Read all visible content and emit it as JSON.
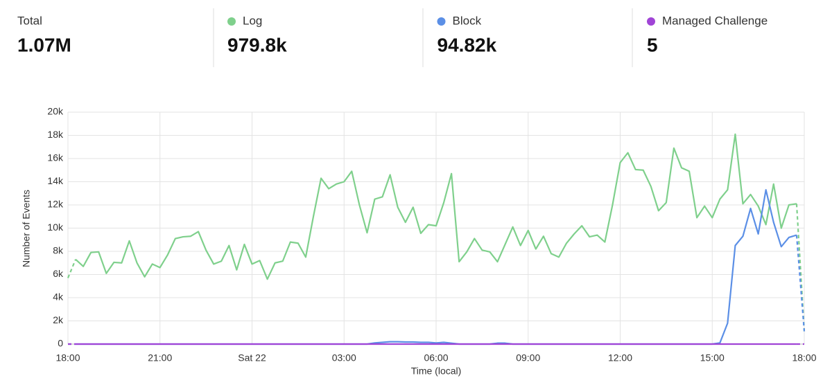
{
  "summary": {
    "label": "Total",
    "value": "1.07M"
  },
  "series_totals": [
    "979.8k",
    "94.82k",
    "5"
  ],
  "chart_data": {
    "type": "line",
    "xlabel": "Time (local)",
    "ylabel": "Number of Events",
    "x": [
      0,
      0.25,
      0.5,
      0.75,
      1,
      1.25,
      1.5,
      1.75,
      2,
      2.25,
      2.5,
      2.75,
      3,
      3.25,
      3.5,
      3.75,
      4,
      4.25,
      4.5,
      4.75,
      5,
      5.25,
      5.5,
      5.75,
      6,
      6.25,
      6.5,
      6.75,
      7,
      7.25,
      7.5,
      7.75,
      8,
      8.25,
      8.5,
      8.75,
      9,
      9.25,
      9.5,
      9.75,
      10,
      10.25,
      10.5,
      10.75,
      11,
      11.25,
      11.5,
      11.75,
      12,
      12.25,
      12.5,
      12.75,
      13,
      13.25,
      13.5,
      13.75,
      14,
      14.25,
      14.5,
      14.75,
      15,
      15.25,
      15.5,
      15.75,
      16,
      16.25,
      16.5,
      16.75,
      17,
      17.25,
      17.5,
      17.75,
      18,
      18.25,
      18.5,
      18.75,
      19,
      19.25,
      19.5,
      19.75,
      20,
      20.25,
      20.5,
      20.75,
      21,
      21.25,
      21.5,
      21.75,
      22,
      22.25,
      22.5,
      22.75,
      23,
      23.25,
      23.5,
      23.75,
      24
    ],
    "xlim": [
      0,
      24
    ],
    "xticks": [
      {
        "value": 0,
        "label": "18:00"
      },
      {
        "value": 3,
        "label": "21:00"
      },
      {
        "value": 6,
        "label": "Sat 22"
      },
      {
        "value": 9,
        "label": "03:00"
      },
      {
        "value": 12,
        "label": "06:00"
      },
      {
        "value": 15,
        "label": "09:00"
      },
      {
        "value": 18,
        "label": "12:00"
      },
      {
        "value": 21,
        "label": "15:00"
      },
      {
        "value": 24,
        "label": "18:00"
      }
    ],
    "ylim": [
      0,
      20000
    ],
    "yticks": [
      0,
      {
        "value": 2000,
        "label": "2k"
      },
      {
        "value": 4000,
        "label": "4k"
      },
      {
        "value": 6000,
        "label": "6k"
      },
      {
        "value": 8000,
        "label": "8k"
      },
      {
        "value": 10000,
        "label": "10k"
      },
      {
        "value": 12000,
        "label": "12k"
      },
      {
        "value": 14000,
        "label": "14k"
      },
      {
        "value": 16000,
        "label": "16k"
      },
      {
        "value": 18000,
        "label": "18k"
      },
      {
        "value": 20000,
        "label": "20k"
      }
    ],
    "grid": true,
    "dashed_ends": true,
    "series": [
      {
        "name": "Log",
        "color": "#7fd08c",
        "values": [
          5700,
          7300,
          6700,
          7900,
          7950,
          6100,
          7050,
          7000,
          8900,
          7000,
          5800,
          6900,
          6600,
          7700,
          9100,
          9250,
          9300,
          9700,
          8100,
          6900,
          7150,
          8500,
          6400,
          8600,
          6900,
          7200,
          5600,
          7000,
          7150,
          8800,
          8700,
          7500,
          11000,
          14300,
          13400,
          13800,
          14000,
          14900,
          12000,
          9600,
          12500,
          12700,
          14600,
          11800,
          10500,
          11800,
          9550,
          10300,
          10200,
          12200,
          14700,
          7100,
          7950,
          9100,
          8100,
          7950,
          7100,
          8600,
          10100,
          8500,
          9800,
          8200,
          9300,
          7800,
          7500,
          8700,
          9500,
          10200,
          9250,
          9400,
          8800,
          12000,
          15650,
          16500,
          15050,
          15000,
          13600,
          11500,
          12200,
          16900,
          15200,
          14900,
          10900,
          11900,
          10900,
          12500,
          13300,
          18100,
          12100,
          12900,
          11900,
          10300,
          13800,
          10000,
          12000,
          12100,
          1100
        ]
      },
      {
        "name": "Block",
        "color": "#5b8fe6",
        "values": [
          0,
          0,
          0,
          0,
          0,
          0,
          0,
          0,
          0,
          0,
          0,
          0,
          0,
          0,
          0,
          0,
          0,
          0,
          0,
          0,
          0,
          0,
          0,
          0,
          0,
          0,
          0,
          0,
          0,
          0,
          0,
          0,
          0,
          0,
          0,
          0,
          0,
          0,
          0,
          0,
          100,
          150,
          200,
          200,
          180,
          180,
          150,
          150,
          100,
          150,
          80,
          0,
          0,
          0,
          0,
          0,
          80,
          80,
          0,
          0,
          0,
          0,
          0,
          0,
          0,
          0,
          0,
          0,
          0,
          0,
          0,
          0,
          0,
          0,
          0,
          0,
          0,
          0,
          0,
          0,
          0,
          0,
          0,
          0,
          0,
          100,
          1800,
          8500,
          9300,
          11700,
          9500,
          13300,
          10500,
          8400,
          9200,
          9400,
          1100
        ]
      },
      {
        "name": "Managed Challenge",
        "color": "#a044d6",
        "values": [
          0,
          0,
          0,
          0,
          0,
          0,
          0,
          0,
          0,
          0,
          0,
          0,
          0,
          0,
          0,
          0,
          0,
          0,
          0,
          0,
          0,
          0,
          0,
          0,
          0,
          0,
          0,
          0,
          0,
          0,
          0,
          0,
          0,
          0,
          0,
          0,
          0,
          0,
          0,
          0,
          0,
          0,
          0,
          0,
          0,
          0,
          0,
          0,
          0,
          0,
          0,
          0,
          0,
          0,
          0,
          0,
          0,
          0,
          0,
          0,
          0,
          0,
          0,
          0,
          0,
          0,
          0,
          0,
          0,
          0,
          0,
          0,
          0,
          0,
          0,
          0,
          0,
          0,
          0,
          0,
          0,
          0,
          0,
          0,
          0,
          0,
          0,
          0,
          0,
          0,
          0,
          0,
          0,
          0,
          0,
          0,
          0
        ]
      }
    ]
  }
}
